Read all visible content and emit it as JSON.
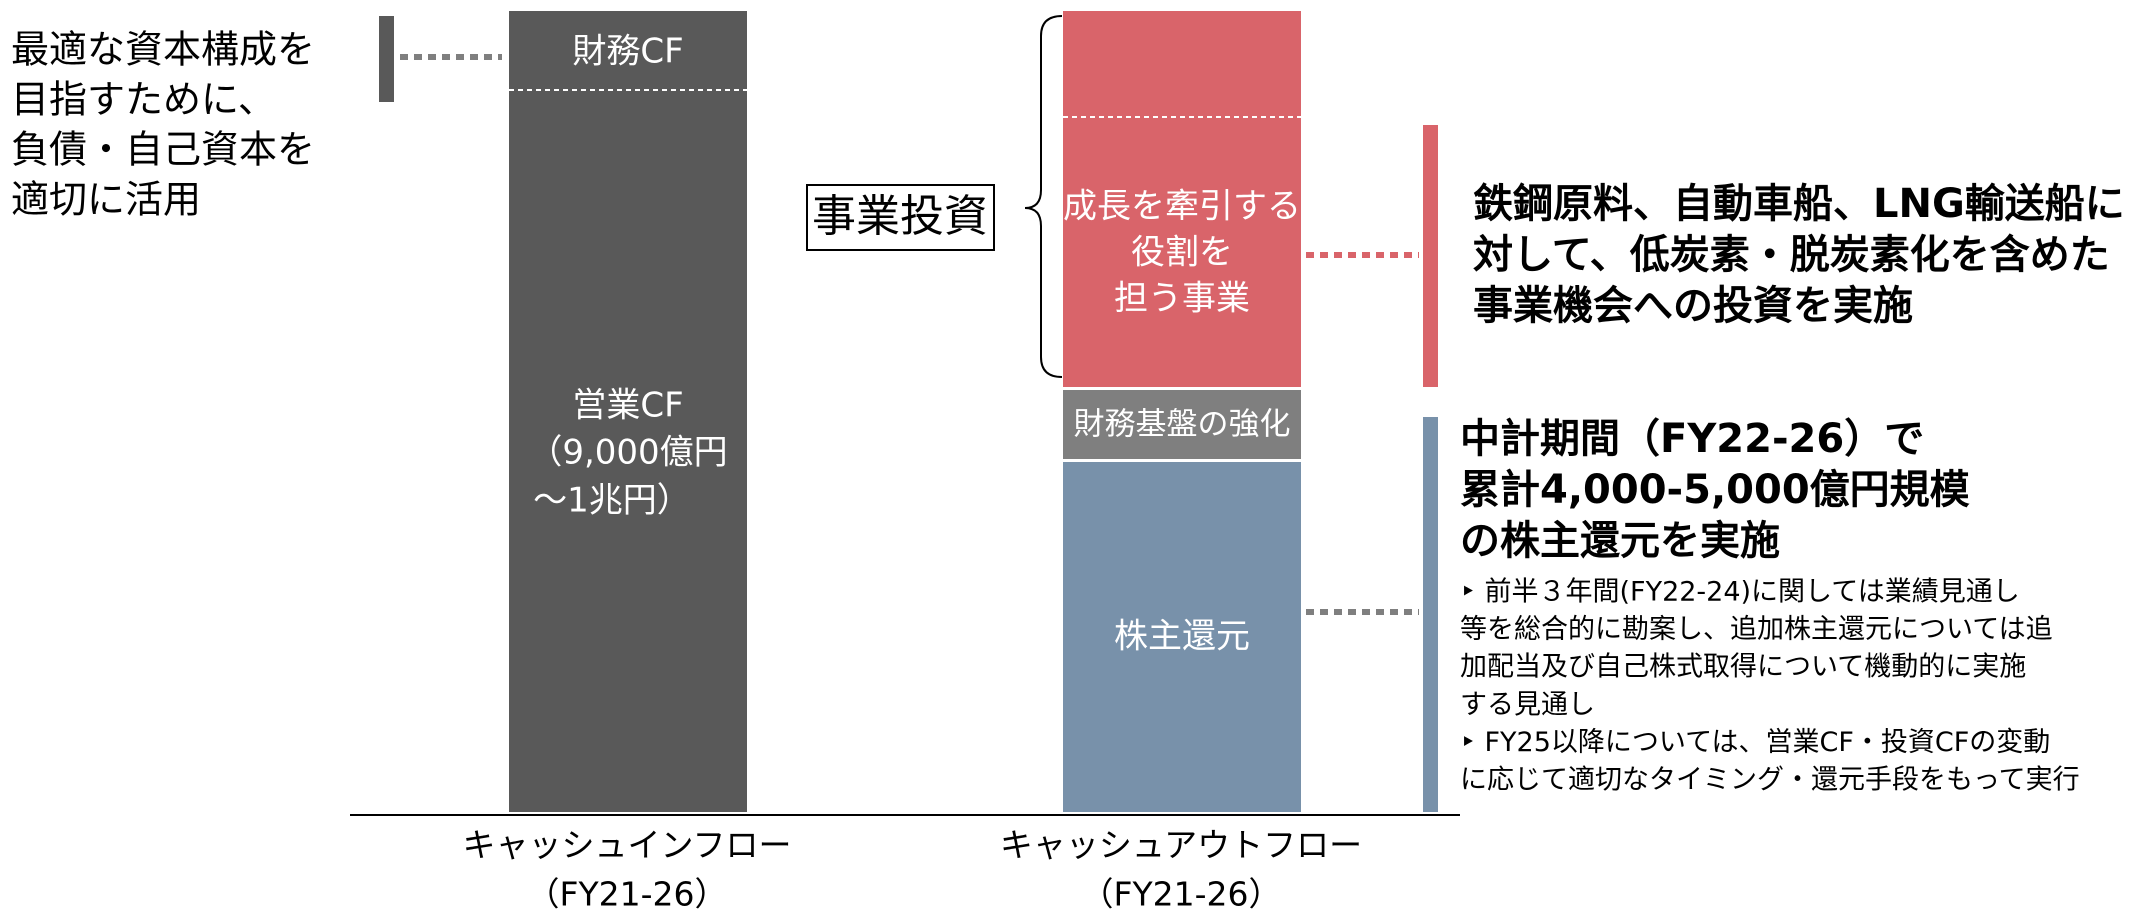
{
  "left_note": {
    "lines": [
      "最適な資本構成を",
      "目指すために、",
      "負債・自己資本を",
      "適切に活用"
    ]
  },
  "inflow": {
    "financing": "財務CF",
    "operating": [
      "営業CF",
      "（9,000億円",
      "～1兆円）"
    ],
    "label": [
      "キャッシュインフロー",
      "（FY21-26）"
    ]
  },
  "outflow": {
    "growth": [
      "成長を牽引する",
      "役割を",
      "担う事業"
    ],
    "financial_base": "財務基盤の強化",
    "shareholder_return": "株主還元",
    "label": [
      "キャッシュアウトフロー",
      "（FY21-26）"
    ]
  },
  "business_investment": "事業投資",
  "investment_note": [
    "鉄鋼原料、自動車船、LNG輸送船に",
    "対して、低炭素・脱炭素化を含めた",
    "事業機会への投資を実施"
  ],
  "return_note": {
    "headline": [
      "中計期間（FY22-26）で",
      "累計4,000-5,000億円規模",
      "の株主還元を実施"
    ],
    "details": [
      "‣ 前半３年間(FY22-24)に関しては業績見通し",
      "等を総合的に勘案し、追加株主還元については追",
      "加配当及び自己株式取得について機動的に実施",
      "する見通し",
      "‣ FY25以降については、営業CF・投資CFの変動",
      "に応じて適切なタイミング・還元手段をもって実行"
    ]
  }
}
